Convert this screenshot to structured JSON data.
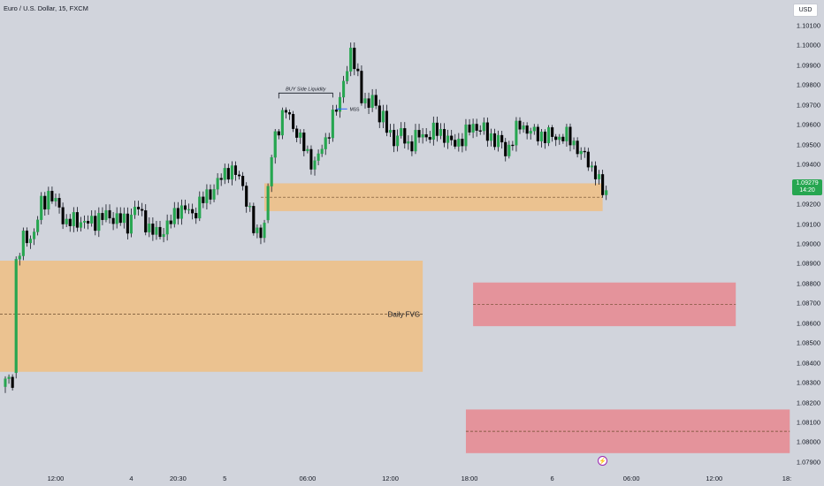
{
  "header": {
    "symbol_title": "Euro / U.S. Dollar, 15, FXCM",
    "currency": "USD"
  },
  "price_axis": {
    "labels": [
      "1.10100",
      "1.10000",
      "1.09900",
      "1.09800",
      "1.09700",
      "1.09600",
      "1.09500",
      "1.09400",
      "1.09200",
      "1.09100",
      "1.09000",
      "1.08900",
      "1.08800",
      "1.08700",
      "1.08600",
      "1.08500",
      "1.08400",
      "1.08300",
      "1.08200",
      "1.08100",
      "1.08000",
      "1.07900"
    ],
    "values": [
      1.101,
      1.1,
      1.099,
      1.098,
      1.097,
      1.096,
      1.095,
      1.094,
      1.092,
      1.091,
      1.09,
      1.089,
      1.088,
      1.087,
      1.086,
      1.085,
      1.084,
      1.083,
      1.082,
      1.081,
      1.08,
      1.079
    ],
    "current_price": "1.09279",
    "countdown": "14:20"
  },
  "time_axis": {
    "labels": [
      "12:00",
      "4",
      "20:30",
      "5",
      "06:00",
      "12:00",
      "18:00",
      "6",
      "06:00",
      "12:00",
      "18:"
    ],
    "bar_index": [
      14,
      35,
      48,
      61,
      84,
      107,
      129,
      152,
      174,
      197,
      219
    ]
  },
  "annotations": {
    "buy_side_liquidity": "BUY Side Liquidity",
    "mss": "MSS",
    "daily_fvg": "Daily FVG"
  },
  "colors": {
    "background": "#d1d4dc",
    "bull_candle": "#26a650",
    "bear_candle": "#000000",
    "demand_zone": "#f0be83",
    "supply_zone": "#e8878f",
    "price_tag": "#26a650",
    "mss_line": "#2962ff"
  },
  "zones": [
    {
      "name": "daily-fvg-zone",
      "type": "demand",
      "bar_from": -2,
      "bar_to": 116,
      "price_top": 1.08915,
      "price_bottom": 1.08355,
      "mid": 1.08645
    },
    {
      "name": "h1-fvg-zone",
      "type": "demand",
      "bar_from": 72,
      "bar_to": 166,
      "price_top": 1.09305,
      "price_bottom": 1.09165,
      "mid": 1.09235
    },
    {
      "name": "supply-zone-upper",
      "type": "supply",
      "bar_from": 130,
      "bar_to": 203,
      "price_top": 1.08805,
      "price_bottom": 1.08585,
      "mid": 1.08695
    },
    {
      "name": "supply-zone-lower",
      "type": "supply",
      "bar_from": 128,
      "bar_to": 218,
      "price_top": 1.08165,
      "price_bottom": 1.07945,
      "mid": 1.08055
    }
  ],
  "chart_data": {
    "type": "candlestick",
    "title": "Euro / U.S. Dollar, 15, FXCM",
    "ylim": [
      1.0787,
      1.1017
    ],
    "keypoints": [
      [
        0,
        1.083
      ],
      [
        2,
        1.0832
      ],
      [
        3,
        1.089
      ],
      [
        5,
        1.0902
      ],
      [
        8,
        1.0905
      ],
      [
        10,
        1.092
      ],
      [
        12,
        1.0925
      ],
      [
        15,
        1.0918
      ],
      [
        17,
        1.091
      ],
      [
        20,
        1.0912
      ],
      [
        23,
        1.091
      ],
      [
        26,
        1.0913
      ],
      [
        29,
        1.0914
      ],
      [
        32,
        1.0912
      ],
      [
        34,
        1.091
      ],
      [
        36,
        1.0918
      ],
      [
        38,
        1.0915
      ],
      [
        40,
        1.0907
      ],
      [
        42,
        1.0905
      ],
      [
        44,
        1.0907
      ],
      [
        46,
        1.0911
      ],
      [
        48,
        1.0918
      ],
      [
        50,
        1.0917
      ],
      [
        52,
        1.0915
      ],
      [
        54,
        1.092
      ],
      [
        57,
        1.0926
      ],
      [
        60,
        1.0933
      ],
      [
        62,
        1.0938
      ],
      [
        64,
        1.0935
      ],
      [
        66,
        1.093
      ],
      [
        68,
        1.0915
      ],
      [
        69,
        1.0907
      ],
      [
        70,
        1.0905
      ],
      [
        72,
        1.091
      ],
      [
        74,
        1.0944
      ],
      [
        75,
        1.0955
      ],
      [
        76,
        1.096
      ],
      [
        78,
        1.0967
      ],
      [
        80,
        1.096
      ],
      [
        82,
        1.0952
      ],
      [
        84,
        1.0945
      ],
      [
        86,
        1.094
      ],
      [
        88,
        1.0948
      ],
      [
        90,
        1.0958
      ],
      [
        92,
        1.0968
      ],
      [
        93,
        1.0972
      ],
      [
        94,
        1.0985
      ],
      [
        95,
        1.0988
      ],
      [
        96,
        1.0995
      ],
      [
        97,
        1.099
      ],
      [
        98,
        1.0985
      ],
      [
        99,
        1.0976
      ],
      [
        100,
        1.097
      ],
      [
        101,
        1.0968
      ],
      [
        102,
        1.0975
      ],
      [
        104,
        1.0965
      ],
      [
        105,
        1.0962
      ],
      [
        106,
        1.0958
      ],
      [
        108,
        1.0953
      ],
      [
        110,
        1.0955
      ],
      [
        112,
        1.095
      ],
      [
        114,
        1.0953
      ],
      [
        116,
        1.0955
      ],
      [
        118,
        1.0955
      ],
      [
        120,
        1.0957
      ],
      [
        122,
        1.0955
      ],
      [
        124,
        1.095
      ],
      [
        126,
        1.0952
      ],
      [
        128,
        1.0955
      ],
      [
        130,
        1.096
      ],
      [
        132,
        1.0958
      ],
      [
        134,
        1.0955
      ],
      [
        136,
        1.0953
      ],
      [
        138,
        1.095
      ],
      [
        139,
        1.0946
      ],
      [
        141,
        1.0953
      ],
      [
        143,
        1.096
      ],
      [
        145,
        1.0958
      ],
      [
        147,
        1.0955
      ],
      [
        149,
        1.0955
      ],
      [
        152,
        1.0954
      ],
      [
        155,
        1.0954
      ],
      [
        157,
        1.0953
      ],
      [
        158,
        1.0951
      ],
      [
        160,
        1.0945
      ],
      [
        162,
        1.0942
      ],
      [
        163,
        1.0938
      ],
      [
        164,
        1.0936
      ],
      [
        165,
        1.093
      ],
      [
        166,
        1.0926
      ],
      [
        167,
        1.0928
      ]
    ]
  }
}
